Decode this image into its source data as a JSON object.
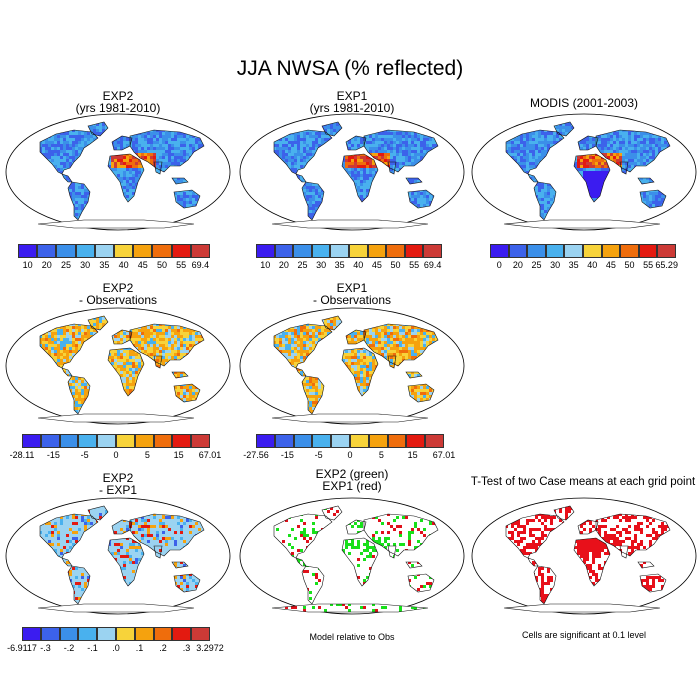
{
  "figure_title": "JJA NWSA (% reflected)",
  "colors": {
    "scale10": [
      "#3b1cf0",
      "#3c62ea",
      "#3b8fe9",
      "#49b1ee",
      "#9bd3f1",
      "#f7d33a",
      "#f5a20e",
      "#ef6d0c",
      "#e31a10",
      "#cc3a36"
    ],
    "land_base": "#49a6ea",
    "ocean": "#ffffff",
    "coast": "#111111"
  },
  "panels": [
    {
      "id": "exp2",
      "title_line1": "EXP2",
      "title_line2": "(yrs 1981-2010)",
      "colorbar": [
        "10",
        "20",
        "25",
        "30",
        "35",
        "40",
        "45",
        "50",
        "55",
        "69.4"
      ]
    },
    {
      "id": "exp1",
      "title_line1": "EXP1",
      "title_line2": "(yrs 1981-2010)",
      "colorbar": [
        "10",
        "20",
        "25",
        "30",
        "35",
        "40",
        "45",
        "50",
        "55",
        "69.4"
      ]
    },
    {
      "id": "modis",
      "title_line1": "MODIS (2001-2003)",
      "title_line2": "",
      "colorbar": [
        "0",
        "20",
        "25",
        "30",
        "35",
        "40",
        "45",
        "50",
        "55",
        "65.29"
      ]
    },
    {
      "id": "exp2obs",
      "title_line1": "EXP2",
      "title_line2": "- Observations",
      "colorbar": [
        "-28.11",
        "-15",
        "-5",
        "0",
        "5",
        "15",
        "67.01"
      ]
    },
    {
      "id": "exp1obs",
      "title_line1": "EXP1",
      "title_line2": "- Observations",
      "colorbar": [
        "-27.56",
        "-15",
        "-5",
        "0",
        "5",
        "15",
        "67.01"
      ]
    },
    {
      "id": "exp2exp1",
      "title_line1": "EXP2",
      "title_line2": "- EXP1",
      "colorbar": [
        "-6.9117",
        "-.3",
        "-.2",
        "-.1",
        ".0",
        ".1",
        ".2",
        ".3",
        "3.2972"
      ]
    },
    {
      "id": "modelrel",
      "title_line1": "EXP2 (green)",
      "title_line2": "EXP1 (red)",
      "note": "Model relative to Obs"
    },
    {
      "id": "ttest",
      "title_line1": "T-Test of two Case means at each grid point",
      "title_line2": "",
      "note": "Cells are significant at 0.1 level"
    }
  ]
}
